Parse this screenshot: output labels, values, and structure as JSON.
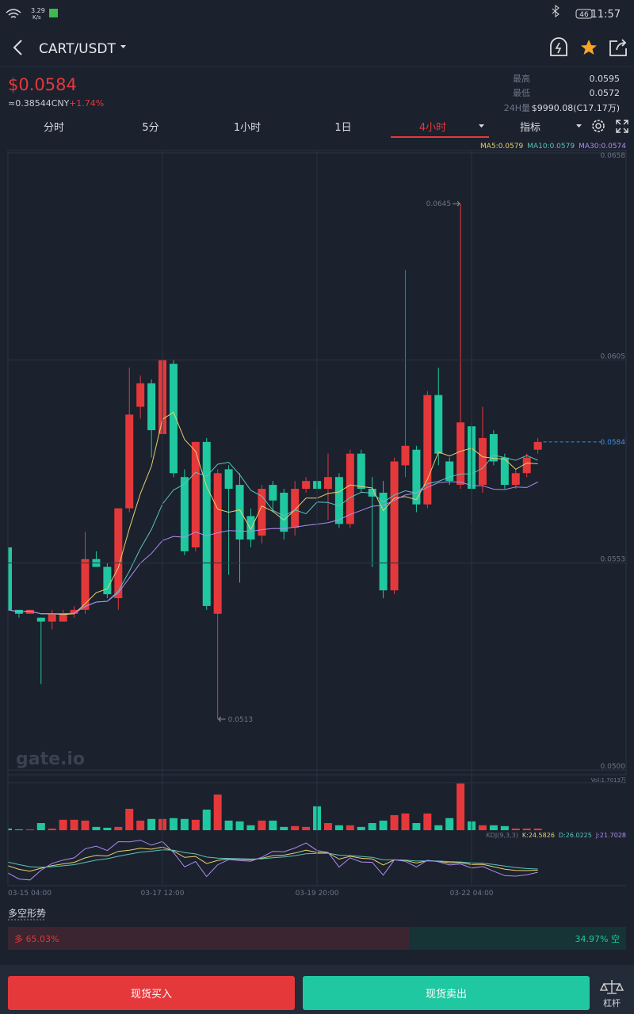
{
  "status_bar": {
    "speed": "3.29",
    "speed_unit": "K/s",
    "battery": "46",
    "time": "11:57"
  },
  "header": {
    "pair": "CART/USDT"
  },
  "ticker": {
    "price": "$0.0584",
    "cny": "≈0.38544CNY",
    "change": "+1.74%",
    "high_label": "最高",
    "high": "0.0595",
    "low_label": "最低",
    "low": "0.0572",
    "volume_label": "24H量",
    "volume": "$9990.08(C17.17万)"
  },
  "tabs": [
    "分时",
    "5分",
    "1小时",
    "1日",
    "4小时",
    "指标"
  ],
  "active_tab": 4,
  "chart_data": {
    "type": "candlestick",
    "ma_labels": [
      "MA5:0.0579",
      "MA10:0.0579",
      "MA30:0.0574"
    ],
    "colors": {
      "up": "#e5383b",
      "down": "#1fc8a0",
      "ma5": "#e6d26a",
      "ma10": "#5cc3bf",
      "ma30": "#b08cf2",
      "last_price": "#3d8fe0"
    },
    "candles": [
      [
        0.0557,
        0.0558,
        0.054,
        0.0541
      ],
      [
        0.0541,
        0.0541,
        0.0539,
        0.054
      ],
      [
        0.054,
        0.0541,
        0.054,
        0.0541
      ],
      [
        0.0539,
        0.0539,
        0.0522,
        0.0538
      ],
      [
        0.0538,
        0.0541,
        0.0536,
        0.054
      ],
      [
        0.0538,
        0.0541,
        0.0538,
        0.054
      ],
      [
        0.054,
        0.0542,
        0.0539,
        0.0541
      ],
      [
        0.0541,
        0.0561,
        0.054,
        0.0554
      ],
      [
        0.0554,
        0.0556,
        0.0552,
        0.0552
      ],
      [
        0.0552,
        0.0553,
        0.0544,
        0.0545
      ],
      [
        0.0544,
        0.0567,
        0.0541,
        0.0567
      ],
      [
        0.0567,
        0.0603,
        0.0566,
        0.0591
      ],
      [
        0.0593,
        0.0601,
        0.059,
        0.0599
      ],
      [
        0.0599,
        0.06,
        0.058,
        0.0587
      ],
      [
        0.0586,
        0.0606,
        0.0584,
        0.0605
      ],
      [
        0.0604,
        0.0605,
        0.0575,
        0.0576
      ],
      [
        0.0575,
        0.0577,
        0.0555,
        0.0556
      ],
      [
        0.0557,
        0.0584,
        0.0556,
        0.0584
      ],
      [
        0.0584,
        0.0585,
        0.0541,
        0.0542
      ],
      [
        0.054,
        0.0577,
        0.0513,
        0.0576
      ],
      [
        0.0577,
        0.0578,
        0.055,
        0.0572
      ],
      [
        0.0573,
        0.0576,
        0.0548,
        0.0559
      ],
      [
        0.0565,
        0.0567,
        0.0557,
        0.0559
      ],
      [
        0.056,
        0.0573,
        0.0558,
        0.0572
      ],
      [
        0.0573,
        0.0574,
        0.0566,
        0.0569
      ],
      [
        0.0571,
        0.0572,
        0.0559,
        0.0561
      ],
      [
        0.0562,
        0.0574,
        0.056,
        0.0572
      ],
      [
        0.0572,
        0.0575,
        0.0571,
        0.0574
      ],
      [
        0.0574,
        0.0588,
        0.0571,
        0.0572
      ],
      [
        0.0572,
        0.0581,
        0.0564,
        0.0575
      ],
      [
        0.0575,
        0.0576,
        0.0562,
        0.0563
      ],
      [
        0.0563,
        0.0582,
        0.0562,
        0.0581
      ],
      [
        0.0581,
        0.0582,
        0.0571,
        0.0572
      ],
      [
        0.0572,
        0.0575,
        0.0552,
        0.057
      ],
      [
        0.0571,
        0.0574,
        0.0544,
        0.0546
      ],
      [
        0.0546,
        0.058,
        0.0545,
        0.0579
      ],
      [
        0.0578,
        0.0628,
        0.0575,
        0.0583
      ],
      [
        0.0582,
        0.0583,
        0.0566,
        0.0568
      ],
      [
        0.0568,
        0.0597,
        0.0567,
        0.0596
      ],
      [
        0.0596,
        0.0603,
        0.0578,
        0.0581
      ],
      [
        0.0579,
        0.058,
        0.0573,
        0.0574
      ],
      [
        0.0573,
        0.0645,
        0.0572,
        0.0589
      ],
      [
        0.0588,
        0.0589,
        0.0563,
        0.0572
      ],
      [
        0.0573,
        0.0593,
        0.0571,
        0.0585
      ],
      [
        0.0586,
        0.0587,
        0.0578,
        0.0579
      ],
      [
        0.058,
        0.0581,
        0.0572,
        0.0573
      ],
      [
        0.0573,
        0.0577,
        0.0572,
        0.0576
      ],
      [
        0.0576,
        0.0581,
        0.0575,
        0.058
      ],
      [
        0.0582,
        0.0585,
        0.0581,
        0.0584
      ]
    ],
    "ylim": [
      0.05,
      0.0658
    ],
    "yticks": [
      {
        "value": 0.05,
        "label": "0.0500"
      },
      0.0553,
      0.0605,
      0.0658
    ],
    "xticks": [
      {
        "value": 0,
        "label": "03-15 04:00"
      },
      {
        "value": 14,
        "label": "03-17 12:00"
      },
      {
        "value": 28,
        "label": "03-19 20:00"
      },
      {
        "value": 42,
        "label": "03-22 04:00"
      }
    ],
    "high_marker": 0.0645,
    "low_marker": 0.0513,
    "last_price": 0.0584,
    "volume_label": "Vol:1.7013万",
    "volumes": [
      0.06,
      0.03,
      0.03,
      0.26,
      0.06,
      0.38,
      0.38,
      0.35,
      0.12,
      0.09,
      0.12,
      0.78,
      0.35,
      0.41,
      0.41,
      0.44,
      0.41,
      0.38,
      0.75,
      1.3,
      0.35,
      0.32,
      0.18,
      0.35,
      0.35,
      0.12,
      0.15,
      0.12,
      0.87,
      0.26,
      0.18,
      0.18,
      0.12,
      0.26,
      0.35,
      0.55,
      0.61,
      0.26,
      0.61,
      0.18,
      0.44,
      1.7,
      0.32,
      0.18,
      0.18,
      0.15,
      0.06,
      0.06,
      0.06
    ],
    "volume_ylim": [
      0,
      1.7013
    ],
    "kdj_labels": [
      "KDJ(9,3,3)",
      "K:24.5826",
      "D:26.0225",
      "J:21.7028"
    ],
    "watermark": "gate.io"
  },
  "long_short": {
    "title": "多空形势",
    "long_label": "多 65.03%",
    "long": 65.03,
    "short_label": "34.97% 空",
    "short": 34.97
  },
  "buttons": {
    "buy": "现货买入",
    "sell": "现货卖出",
    "margin": "杠杆"
  }
}
